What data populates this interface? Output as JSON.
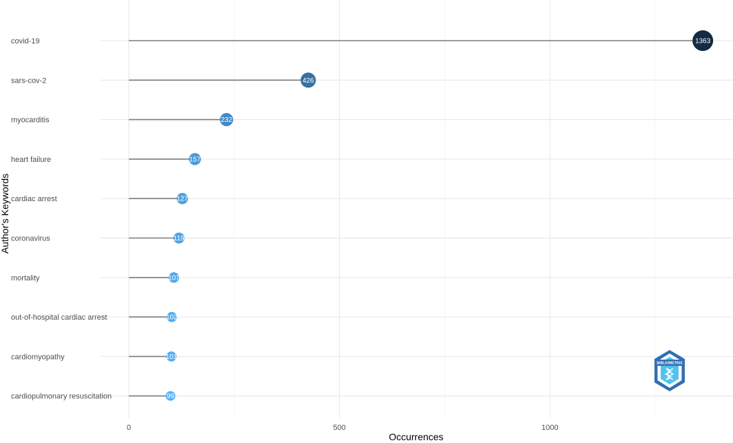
{
  "chart_data": {
    "type": "lollipop",
    "xlabel": "Occurrences",
    "ylabel": "Author's Keywords",
    "xlim": [
      -70,
      1370
    ],
    "x_ticks": [
      0,
      500,
      1000
    ],
    "grid": true,
    "categories": [
      "covid-19",
      "sars-cov-2",
      "myocarditis",
      "heart failure",
      "cardiac arrest",
      "coronavirus",
      "mortality",
      "out-of-hospital cardiac arrest",
      "cardiomyopathy",
      "cardiopulmonary resuscitation"
    ],
    "values": [
      1363,
      426,
      232,
      157,
      127,
      119,
      107,
      102,
      101,
      99
    ],
    "color_scale": {
      "low": "#56B1F7",
      "high": "#132B43"
    }
  },
  "logo": {
    "name": "bibliometrix-logo",
    "text": "BIBLIOMETRIX"
  }
}
